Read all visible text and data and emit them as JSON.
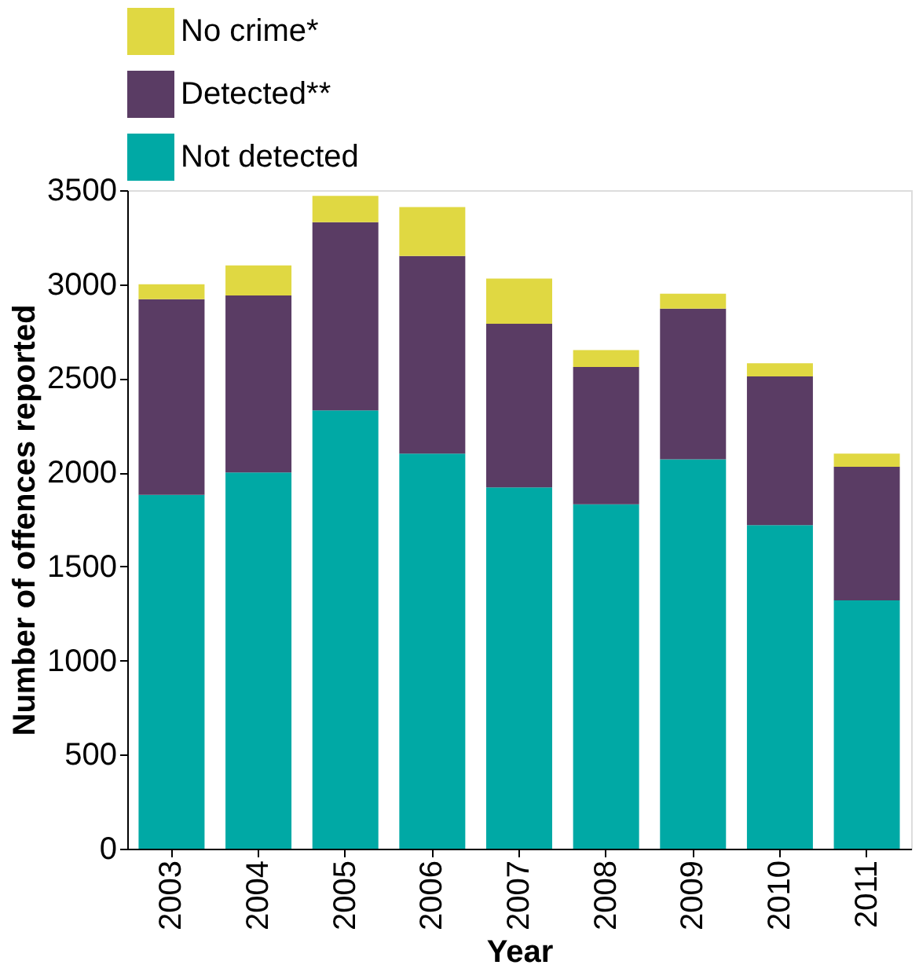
{
  "chart_data": {
    "type": "bar",
    "stacked": true,
    "xlabel": "Year",
    "ylabel": "Number of offences reported",
    "categories": [
      "2003",
      "2004",
      "2005",
      "2006",
      "2007",
      "2008",
      "2009",
      "2010",
      "2011"
    ],
    "series": [
      {
        "name": "Not detected",
        "color": "#00a9a5",
        "values": [
          1880,
          2000,
          2330,
          2100,
          1920,
          1830,
          2070,
          1720,
          1320
        ]
      },
      {
        "name": "Detected**",
        "color": "#5a3c64",
        "values": [
          1040,
          940,
          1000,
          1050,
          870,
          730,
          800,
          790,
          710
        ]
      },
      {
        "name": "No crime*",
        "color": "#e0d842",
        "values": [
          80,
          160,
          140,
          260,
          240,
          90,
          80,
          70,
          70
        ]
      }
    ],
    "ylim": [
      0,
      3500
    ],
    "yticks": [
      0,
      500,
      1000,
      1500,
      2000,
      2500,
      3000,
      3500
    ],
    "grid": false,
    "legend": "top"
  }
}
